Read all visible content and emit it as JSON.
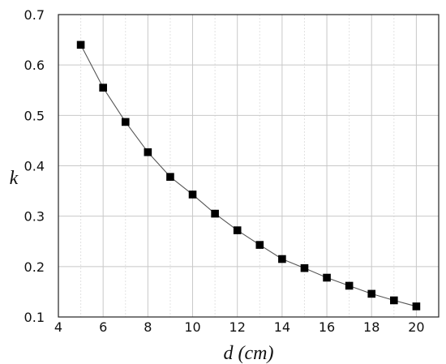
{
  "chart_data": {
    "type": "line",
    "xlabel": "d (cm)",
    "ylabel": "k",
    "xlim": [
      4,
      21
    ],
    "ylim": [
      0.1,
      0.7
    ],
    "x_ticks": [
      "4",
      "6",
      "8",
      "10",
      "12",
      "14",
      "16",
      "18",
      "20"
    ],
    "y_ticks": [
      "0.1",
      "0.2",
      "0.3",
      "0.4",
      "0.5",
      "0.6",
      "0.7"
    ],
    "grid": true,
    "marker": "square",
    "colors": {
      "line": "#555555",
      "marker": "#000000",
      "major_grid": "#c8c8c8",
      "minor_grid": "#e2e2e2",
      "axis": "#222222"
    },
    "series": [
      {
        "x": [
          5,
          6,
          7,
          8,
          9,
          10,
          11,
          12,
          13,
          14,
          15,
          16,
          17,
          18,
          19,
          20
        ],
        "values": [
          0.64,
          0.555,
          0.487,
          0.427,
          0.378,
          0.343,
          0.305,
          0.272,
          0.243,
          0.215,
          0.197,
          0.178,
          0.162,
          0.146,
          0.133,
          0.121
        ]
      }
    ]
  }
}
